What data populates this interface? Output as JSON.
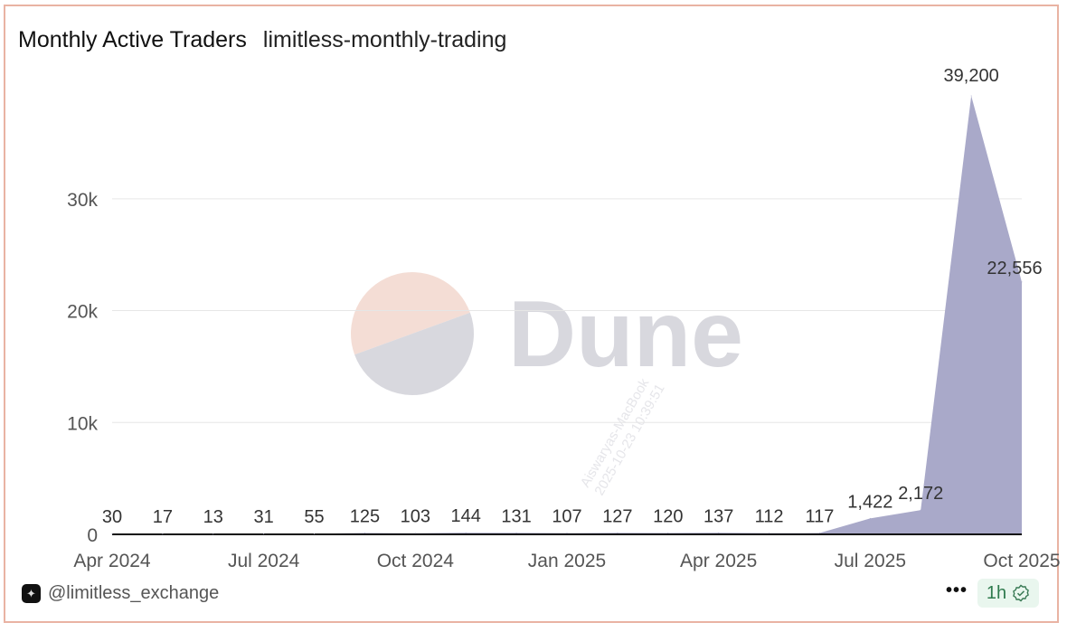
{
  "header": {
    "title": "Monthly Active Traders",
    "query_name": "limitless-monthly-trading"
  },
  "footer": {
    "username": "@limitless_exchange",
    "more_label": "•••",
    "refresh_label": "1h",
    "refresh_icon": "verified-badge-icon"
  },
  "watermark": {
    "brand": "Dune",
    "user_stamp": "Aiswaryas-MacBook",
    "time_stamp": "2025-10-23 10:39:51"
  },
  "colors": {
    "area": "#a9a9c9",
    "frame": "#e9b3a3",
    "logo_top": "#f4ddd5",
    "logo_bottom": "#d8d8de"
  },
  "chart_data": {
    "type": "area",
    "title": "Monthly Active Traders",
    "x": [
      "2024-04",
      "2024-05",
      "2024-06",
      "2024-07",
      "2024-08",
      "2024-09",
      "2024-10",
      "2024-11",
      "2024-12",
      "2025-01",
      "2025-02",
      "2025-03",
      "2025-04",
      "2025-05",
      "2025-06",
      "2025-07",
      "2025-08",
      "2025-09",
      "2025-10"
    ],
    "values": [
      30,
      17,
      13,
      31,
      55,
      125,
      103,
      144,
      131,
      107,
      127,
      120,
      137,
      112,
      117,
      1422,
      2172,
      39200,
      22556
    ],
    "data_labels": [
      "30",
      "17",
      "13",
      "31",
      "55",
      "125",
      "103",
      "144",
      "131",
      "107",
      "127",
      "120",
      "137",
      "112",
      "117",
      "1,422",
      "2,172",
      "39,200",
      "22,556"
    ],
    "x_ticks": [
      {
        "index": 0,
        "label": "Apr 2024"
      },
      {
        "index": 3,
        "label": "Jul 2024"
      },
      {
        "index": 6,
        "label": "Oct 2024"
      },
      {
        "index": 9,
        "label": "Jan 2025"
      },
      {
        "index": 12,
        "label": "Apr 2025"
      },
      {
        "index": 15,
        "label": "Jul 2025"
      },
      {
        "index": 18,
        "label": "Oct 2025"
      }
    ],
    "y_ticks": [
      {
        "value": 0,
        "label": "0"
      },
      {
        "value": 10000,
        "label": "10k"
      },
      {
        "value": 20000,
        "label": "20k"
      },
      {
        "value": 30000,
        "label": "30k"
      }
    ],
    "ylim": [
      0,
      39200
    ],
    "grid": true,
    "legend": "none"
  }
}
